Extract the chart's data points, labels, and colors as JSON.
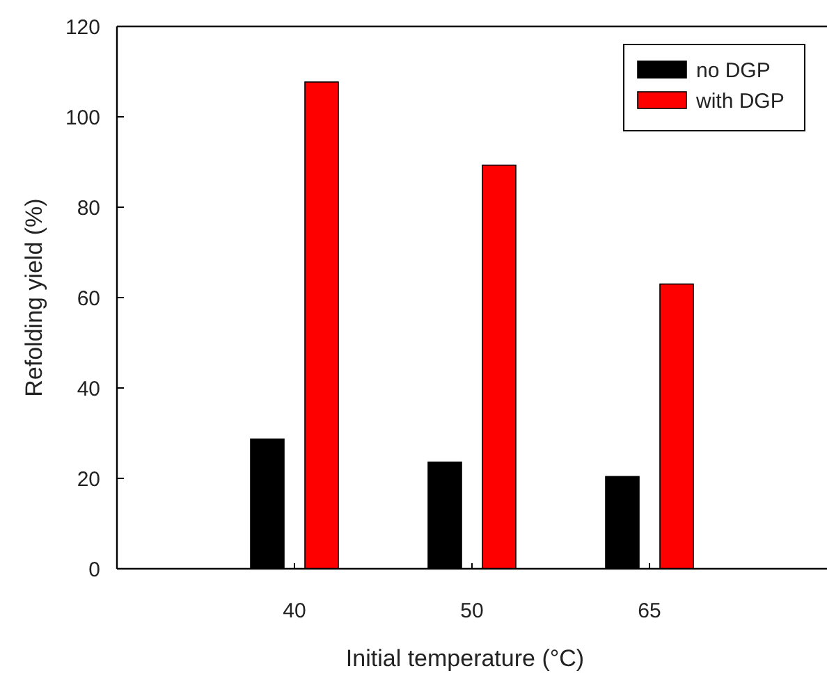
{
  "chart_data": {
    "type": "bar",
    "xlabel": "Initial temperature (°C)",
    "ylabel": "Refolding yield (%)",
    "categories": [
      "40",
      "50",
      "65"
    ],
    "series": [
      {
        "name": "no DGP",
        "color": "#000000",
        "values": [
          28.7,
          23.6,
          20.4
        ]
      },
      {
        "name": "with DGP",
        "color": "#ff0000",
        "values": [
          107.7,
          89.3,
          63
        ]
      }
    ],
    "ylim": [
      0,
      120
    ],
    "yticks": [
      0,
      20,
      40,
      60,
      80,
      100,
      120
    ],
    "legend": "top right",
    "grid": false
  }
}
